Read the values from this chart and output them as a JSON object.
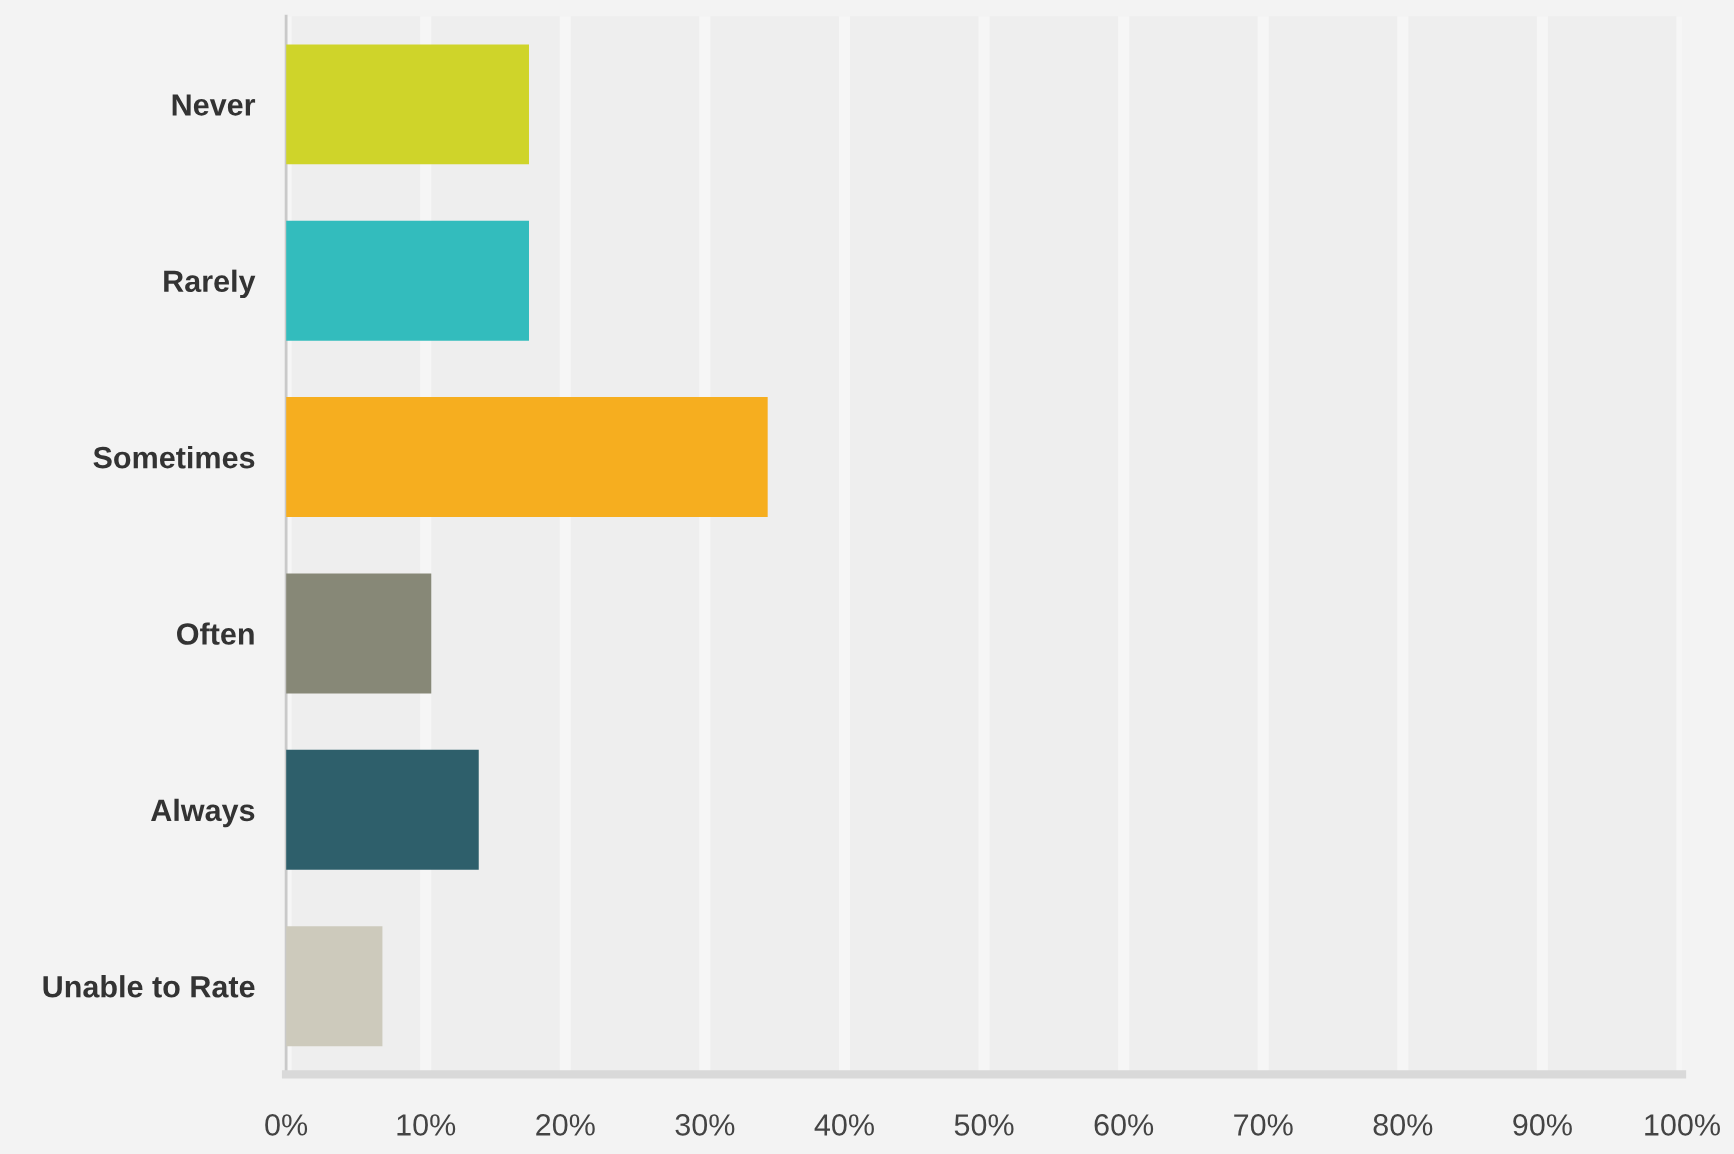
{
  "chart_data": {
    "type": "bar",
    "orientation": "horizontal",
    "categories": [
      "Never",
      "Rarely",
      "Sometimes",
      "Often",
      "Always",
      "Unable to Rate"
    ],
    "values": [
      17.4,
      17.4,
      34.5,
      10.4,
      13.8,
      6.9
    ],
    "colors": [
      "#cfd42a",
      "#33bcbd",
      "#f6ae1f",
      "#878877",
      "#2e5f6b",
      "#cdcabc"
    ],
    "xlim": [
      0,
      100
    ],
    "xticks": [
      {
        "value": 0,
        "label": "0%"
      },
      {
        "value": 10,
        "label": "10%"
      },
      {
        "value": 20,
        "label": "20%"
      },
      {
        "value": 30,
        "label": "30%"
      },
      {
        "value": 40,
        "label": "40%"
      },
      {
        "value": 50,
        "label": "50%"
      },
      {
        "value": 60,
        "label": "60%"
      },
      {
        "value": 70,
        "label": "70%"
      },
      {
        "value": 80,
        "label": "80%"
      },
      {
        "value": 90,
        "label": "90%"
      },
      {
        "value": 100,
        "label": "100%"
      }
    ],
    "grid": "x",
    "legend": false
  }
}
